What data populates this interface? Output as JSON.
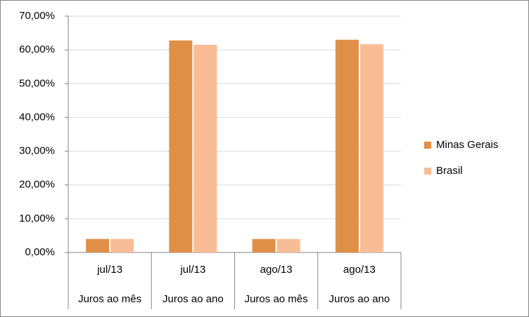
{
  "chart_data": {
    "type": "bar",
    "categories": [
      "jul/13",
      "jul/13",
      "ago/13",
      "ago/13"
    ],
    "groups": [
      "Juros ao mês",
      "Juros ao ano",
      "Juros ao mês",
      "Juros ao ano"
    ],
    "series": [
      {
        "name": "Minas Gerais",
        "color": "#e08f47",
        "values": [
          4.0,
          62.8,
          4.0,
          63.0
        ]
      },
      {
        "name": "Brasil",
        "color": "#f8bd96",
        "values": [
          4.0,
          61.5,
          4.0,
          61.7
        ]
      }
    ],
    "ylim": [
      0,
      70
    ],
    "yticks": [
      {
        "value": 0,
        "label": "0,00%"
      },
      {
        "value": 10,
        "label": "10,00%"
      },
      {
        "value": 20,
        "label": "20,00%"
      },
      {
        "value": 30,
        "label": "30,00%"
      },
      {
        "value": 40,
        "label": "40,00%"
      },
      {
        "value": 50,
        "label": "50,00%"
      },
      {
        "value": 60,
        "label": "60,00%"
      },
      {
        "value": 70,
        "label": "70,00%"
      }
    ],
    "grid": true,
    "legend": "right"
  }
}
